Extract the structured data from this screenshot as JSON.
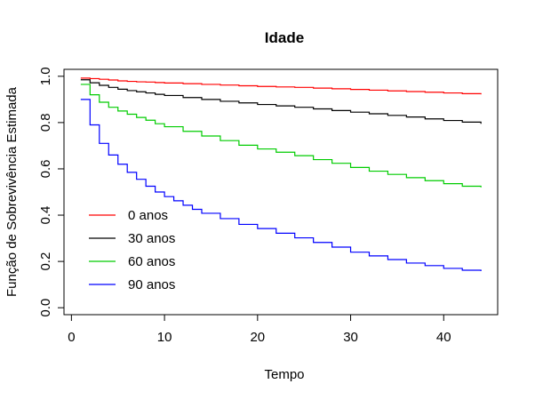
{
  "chart_data": {
    "type": "line",
    "title": "Idade",
    "xlabel": "Tempo",
    "ylabel": "Função de Sobrevivência Estimada",
    "xlim": [
      -0.8,
      45.8
    ],
    "ylim": [
      -0.03,
      1.03
    ],
    "x_ticks": [
      0,
      10,
      20,
      30,
      40
    ],
    "y_ticks": [
      0.0,
      0.2,
      0.4,
      0.6,
      0.8,
      1.0
    ],
    "x_tick_labels": [
      "0",
      "10",
      "20",
      "30",
      "40"
    ],
    "y_tick_labels": [
      "0.0",
      "0.2",
      "0.4",
      "0.6",
      "0.8",
      "1.0"
    ],
    "grid": false,
    "legend": {
      "position": "left",
      "border": false
    },
    "series": [
      {
        "name": "0 anos",
        "color": "#ff0000",
        "x": [
          1,
          2,
          3,
          4,
          5,
          6,
          7,
          8,
          9,
          10,
          12,
          14,
          16,
          18,
          20,
          22,
          24,
          26,
          28,
          30,
          32,
          34,
          36,
          38,
          40,
          42,
          44
        ],
        "y": [
          0.992,
          0.99,
          0.987,
          0.984,
          0.98,
          0.978,
          0.976,
          0.975,
          0.973,
          0.971,
          0.968,
          0.965,
          0.962,
          0.959,
          0.956,
          0.954,
          0.952,
          0.949,
          0.946,
          0.943,
          0.94,
          0.937,
          0.934,
          0.931,
          0.928,
          0.925,
          0.922
        ]
      },
      {
        "name": "30 anos",
        "color": "#000000",
        "x": [
          1,
          2,
          3,
          4,
          5,
          6,
          7,
          8,
          9,
          10,
          12,
          14,
          16,
          18,
          20,
          22,
          24,
          26,
          28,
          30,
          32,
          34,
          36,
          38,
          40,
          42,
          44
        ],
        "y": [
          0.985,
          0.972,
          0.961,
          0.952,
          0.944,
          0.938,
          0.933,
          0.928,
          0.922,
          0.917,
          0.908,
          0.9,
          0.892,
          0.885,
          0.878,
          0.872,
          0.866,
          0.859,
          0.852,
          0.845,
          0.838,
          0.831,
          0.824,
          0.816,
          0.809,
          0.802,
          0.795
        ]
      },
      {
        "name": "60 anos",
        "color": "#00cc00",
        "x": [
          1,
          2,
          3,
          4,
          5,
          6,
          7,
          8,
          9,
          10,
          12,
          14,
          16,
          18,
          20,
          22,
          24,
          26,
          28,
          30,
          32,
          34,
          36,
          38,
          40,
          42,
          44
        ],
        "y": [
          0.965,
          0.92,
          0.888,
          0.866,
          0.85,
          0.836,
          0.822,
          0.81,
          0.795,
          0.782,
          0.762,
          0.742,
          0.722,
          0.702,
          0.686,
          0.672,
          0.657,
          0.64,
          0.624,
          0.606,
          0.59,
          0.576,
          0.562,
          0.549,
          0.536,
          0.525,
          0.52
        ]
      },
      {
        "name": "90 anos",
        "color": "#0000ff",
        "x": [
          1,
          2,
          3,
          4,
          5,
          6,
          7,
          8,
          9,
          10,
          11,
          12,
          13,
          14,
          16,
          18,
          20,
          22,
          24,
          26,
          28,
          30,
          32,
          34,
          36,
          38,
          40,
          42,
          44
        ],
        "y": [
          0.9,
          0.79,
          0.71,
          0.66,
          0.62,
          0.585,
          0.555,
          0.525,
          0.5,
          0.48,
          0.462,
          0.443,
          0.425,
          0.408,
          0.385,
          0.36,
          0.342,
          0.322,
          0.302,
          0.282,
          0.262,
          0.24,
          0.224,
          0.208,
          0.193,
          0.182,
          0.17,
          0.162,
          0.158
        ]
      }
    ]
  }
}
